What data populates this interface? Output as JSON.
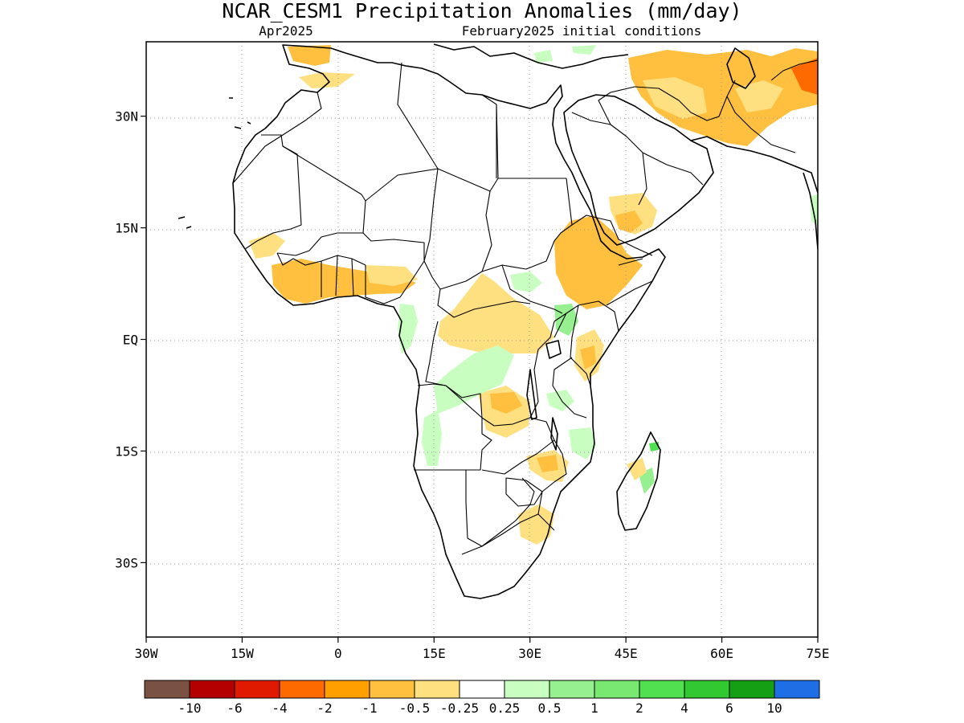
{
  "title": "NCAR_CESM1 Precipitation Anomalies (mm/day)",
  "subtitle_left": "Apr2025",
  "subtitle_right": "February2025 initial conditions",
  "map": {
    "lon_range": [
      -30,
      75
    ],
    "lat_range": [
      -40,
      40
    ],
    "lon_ticks": [
      {
        "lon": -30,
        "label": "30W"
      },
      {
        "lon": -15,
        "label": "15W"
      },
      {
        "lon": 0,
        "label": "0"
      },
      {
        "lon": 15,
        "label": "15E"
      },
      {
        "lon": 30,
        "label": "30E"
      },
      {
        "lon": 45,
        "label": "45E"
      },
      {
        "lon": 60,
        "label": "60E"
      },
      {
        "lon": 75,
        "label": "75E"
      }
    ],
    "lat_ticks": [
      {
        "lat": 30,
        "label": "30N"
      },
      {
        "lat": 15,
        "label": "15N"
      },
      {
        "lat": 0,
        "label": "EQ"
      },
      {
        "lat": -15,
        "label": "15S"
      },
      {
        "lat": -30,
        "label": "30S"
      }
    ],
    "grid": "dotted"
  },
  "colorbar": {
    "colors": [
      "#7a5244",
      "#b40000",
      "#e01a00",
      "#ff6a00",
      "#ffa000",
      "#ffc040",
      "#ffe080",
      "#ffffff",
      "#c8ffc0",
      "#96f090",
      "#78e870",
      "#50e050",
      "#32c832",
      "#14a014",
      "#1e6ee6"
    ],
    "labels": [
      "-10",
      "-6",
      "-4",
      "-2",
      "-1",
      "-0.5",
      "-0.25",
      "0.25",
      "0.5",
      "1",
      "2",
      "4",
      "6",
      "10"
    ]
  }
}
